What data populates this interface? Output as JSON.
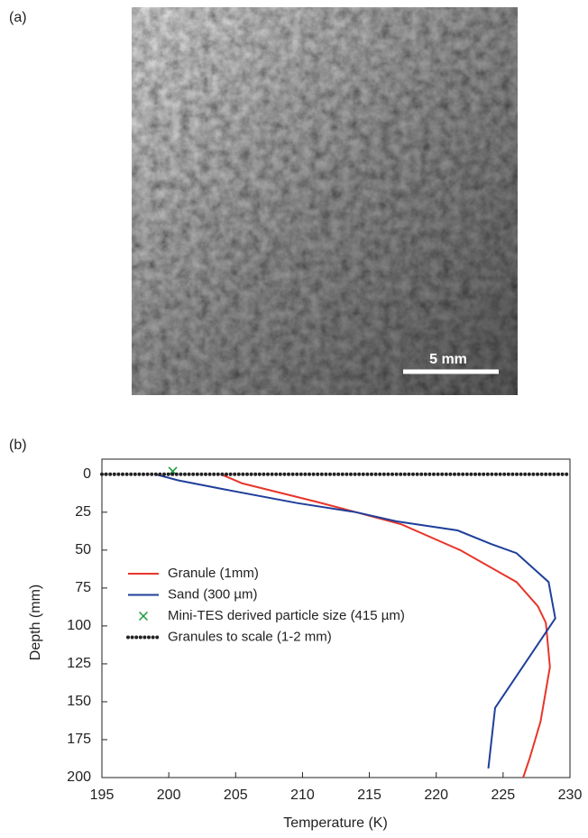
{
  "figure": {
    "panel_a_label": "(a)",
    "scale_bar_label": "5 mm",
    "panel_b_label": "(b)"
  },
  "chart_data": {
    "type": "line",
    "x_label": "Temperature (K)",
    "y_label": "Depth (mm)",
    "xlim": [
      195,
      230
    ],
    "xticks": [
      195,
      200,
      205,
      210,
      215,
      220,
      225,
      230
    ],
    "ylim": [
      200,
      -10
    ],
    "yticks": [
      0,
      25,
      50,
      75,
      100,
      125,
      150,
      175,
      200
    ],
    "series": [
      {
        "name": "Granule (1mm)",
        "color": "#e8352a",
        "marker": "none",
        "x": [
          203.9,
          205.5,
          211,
          214,
          217.4,
          221.8,
          226,
          227.6,
          228.2,
          228.5,
          227.8,
          227,
          226.5
        ],
        "values": [
          0,
          6,
          18,
          25,
          33,
          50,
          71,
          87,
          98,
          127,
          163,
          187,
          200
        ]
      },
      {
        "name": "Sand (300 µm)",
        "color": "#1f3f9a",
        "marker": "none",
        "x": [
          199,
          200.7,
          204.2,
          209.6,
          214,
          217,
          221.6,
          224.1,
          226,
          228.4,
          228.9,
          224.4,
          223.9
        ],
        "values": [
          0,
          4,
          10,
          19,
          25,
          31,
          37,
          46,
          52,
          71,
          95,
          154,
          194
        ]
      },
      {
        "name": "Mini-TES derived particle size (415 µm)",
        "color": "#1a9a3a",
        "marker": "x",
        "x": [
          200.3
        ],
        "values": [
          -2
        ]
      },
      {
        "name": "Granules to scale (1-2 mm)",
        "color": "#222222",
        "marker": "dots",
        "x": [
          195,
          230
        ],
        "values": [
          0,
          0
        ]
      }
    ]
  }
}
